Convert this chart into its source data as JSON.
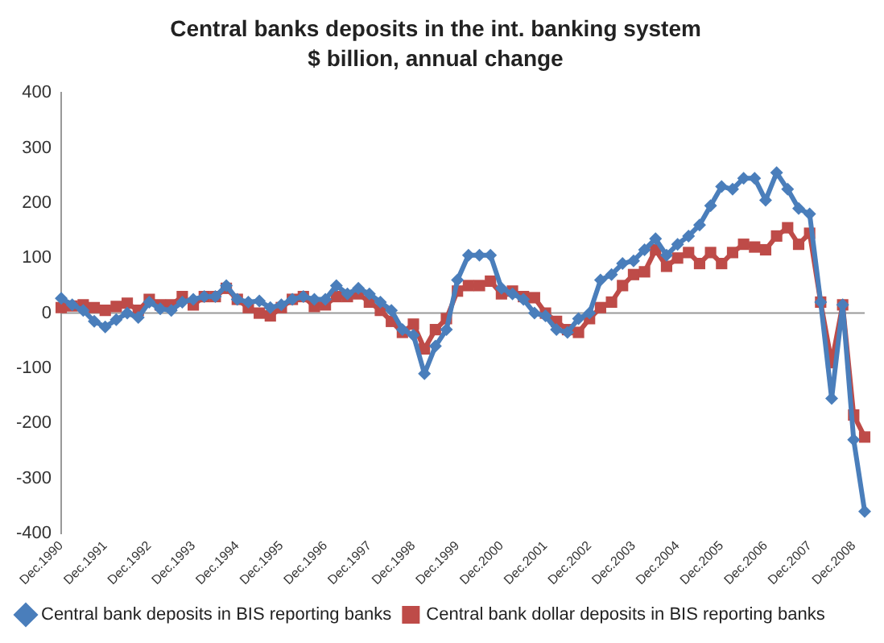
{
  "chart_data": {
    "type": "line",
    "title": "Central banks deposits in the int. banking system",
    "subtitle": "$ billion, annual change",
    "categories": [
      "Dec.1990",
      null,
      null,
      null,
      "Dec.1991",
      null,
      null,
      null,
      "Dec.1992",
      null,
      null,
      null,
      "Dec.1993",
      null,
      null,
      null,
      "Dec.1994",
      null,
      null,
      null,
      "Dec.1995",
      null,
      null,
      null,
      "Dec.1996",
      null,
      null,
      null,
      "Dec.1997",
      null,
      null,
      null,
      "Dec.1998",
      null,
      null,
      null,
      "Dec.1999",
      null,
      null,
      null,
      "Dec.2000",
      null,
      null,
      null,
      "Dec.2001",
      null,
      null,
      null,
      "Dec.2002",
      null,
      null,
      null,
      "Dec.2003",
      null,
      null,
      null,
      "Dec.2004",
      null,
      null,
      null,
      "Dec.2005",
      null,
      null,
      null,
      "Dec.2006",
      null,
      null,
      null,
      "Dec.2007",
      null,
      null,
      null,
      "Dec.2008",
      null
    ],
    "series": [
      {
        "name": "Central bank deposits in BIS reporting banks",
        "color": "#4a7ebb",
        "marker": "diamond",
        "values": [
          27,
          15,
          5,
          -15,
          -25,
          -12,
          0,
          -8,
          20,
          8,
          5,
          20,
          25,
          30,
          30,
          50,
          25,
          20,
          22,
          10,
          15,
          25,
          30,
          25,
          25,
          50,
          35,
          45,
          35,
          20,
          5,
          -30,
          -40,
          -110,
          -60,
          -30,
          60,
          105,
          105,
          105,
          45,
          35,
          25,
          0,
          -5,
          -30,
          -35,
          -10,
          0,
          60,
          70,
          90,
          95,
          115,
          135,
          105,
          125,
          140,
          160,
          195,
          230,
          225,
          245,
          245,
          205,
          255,
          225,
          190,
          180,
          20,
          -155,
          15,
          -230,
          -360
        ]
      },
      {
        "name": "Central bank dollar deposits in BIS reporting banks",
        "color": "#be4b48",
        "marker": "square",
        "values": [
          10,
          13,
          15,
          10,
          5,
          12,
          18,
          5,
          25,
          15,
          15,
          30,
          15,
          30,
          30,
          45,
          25,
          10,
          0,
          -5,
          10,
          25,
          30,
          12,
          15,
          30,
          30,
          35,
          20,
          5,
          -15,
          -35,
          -20,
          -65,
          -30,
          -10,
          40,
          50,
          50,
          58,
          35,
          40,
          30,
          28,
          0,
          -15,
          -30,
          -35,
          -10,
          10,
          20,
          50,
          70,
          75,
          115,
          85,
          100,
          110,
          90,
          110,
          90,
          110,
          125,
          120,
          115,
          140,
          155,
          125,
          145,
          20,
          -90,
          15,
          -185,
          -225
        ]
      }
    ],
    "ylim": [
      -400,
      400
    ],
    "yticks": [
      -400,
      -300,
      -200,
      -100,
      0,
      100,
      200,
      300,
      400
    ],
    "grid": false,
    "legend": "bottom",
    "ref_lines": [
      {
        "axis": "y",
        "value": 0,
        "color": "#999999"
      }
    ]
  }
}
